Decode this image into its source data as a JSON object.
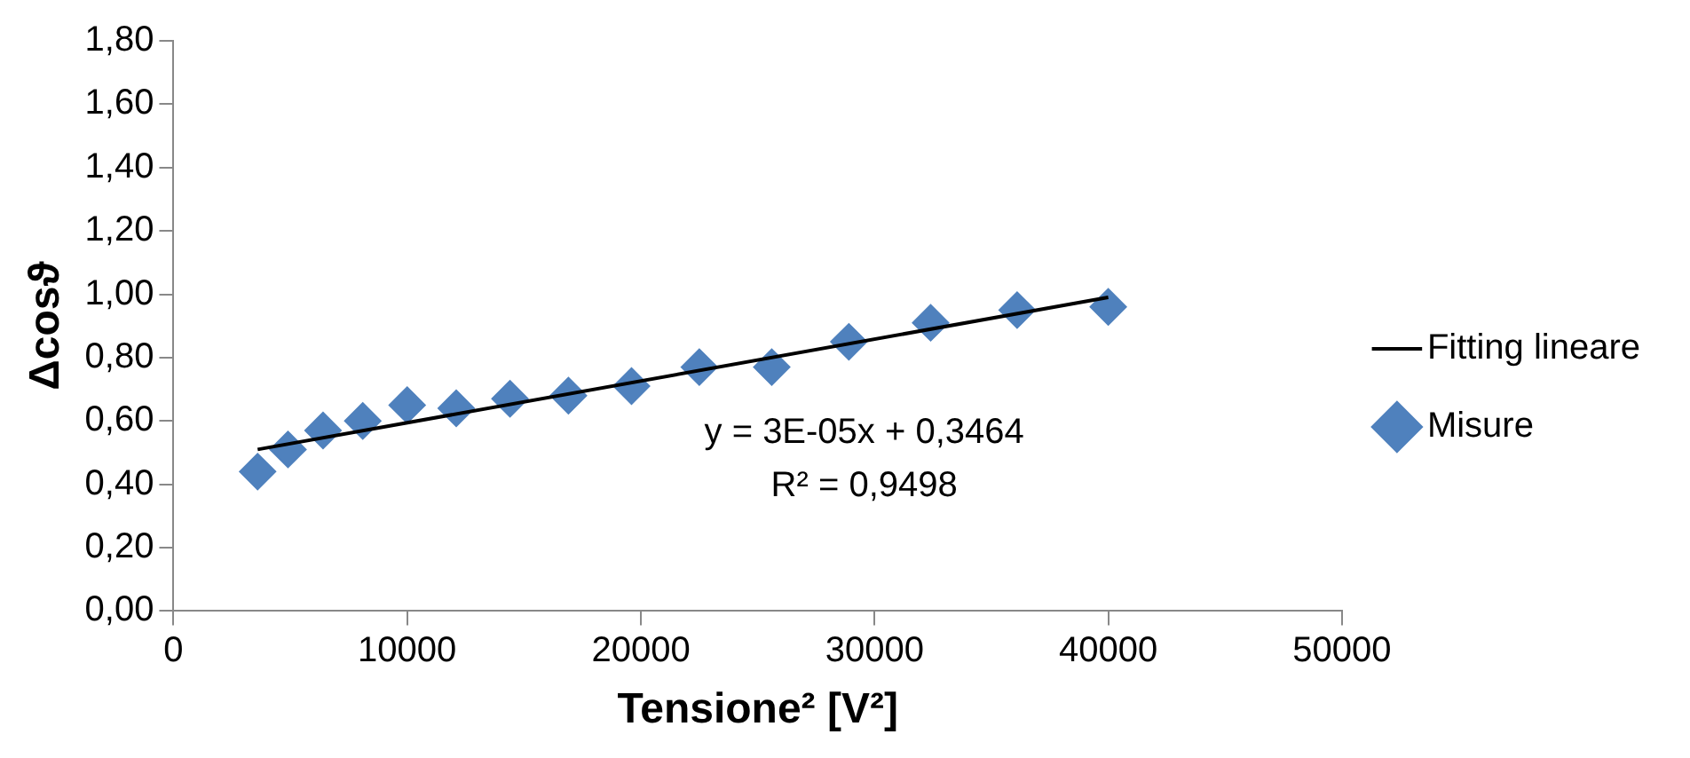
{
  "chart_data": {
    "type": "scatter",
    "xlabel": "Tensione² [V²]",
    "ylabel": "Δcosϑ",
    "x": [
      3600,
      4900,
      6400,
      8100,
      10000,
      12100,
      14400,
      16900,
      19600,
      22500,
      25600,
      28900,
      32400,
      36100,
      40000
    ],
    "series": [
      {
        "name": "Misure",
        "type": "scatter",
        "color": "#4f81bd",
        "marker": "diamond",
        "values": [
          0.44,
          0.51,
          0.57,
          0.6,
          0.65,
          0.64,
          0.67,
          0.68,
          0.71,
          0.77,
          0.77,
          0.85,
          0.91,
          0.95,
          0.96
        ]
      },
      {
        "name": "Fitting lineare",
        "type": "line",
        "color": "#000000",
        "marker": "none",
        "x": [
          3600,
          40000
        ],
        "values": [
          0.51,
          0.99
        ]
      }
    ],
    "xlim": [
      0,
      50000
    ],
    "xticks": [
      0,
      10000,
      20000,
      30000,
      40000,
      50000
    ],
    "ylim": [
      0,
      1.8
    ],
    "yticks": [
      {
        "value": 0,
        "label": "0,00"
      },
      {
        "value": 0.2,
        "label": "0,20"
      },
      {
        "value": 0.4,
        "label": "0,40"
      },
      {
        "value": 0.6,
        "label": "0,60"
      },
      {
        "value": 0.8,
        "label": "0,80"
      },
      {
        "value": 1,
        "label": "1,00"
      },
      {
        "value": 1.2,
        "label": "1,20"
      },
      {
        "value": 1.4,
        "label": "1,40"
      },
      {
        "value": 1.6,
        "label": "1,60"
      },
      {
        "value": 1.8,
        "label": "1,80"
      }
    ],
    "annotations": [
      "y = 3E-05x + 0,3464",
      "R² = 0,9498"
    ],
    "grid": false,
    "legend": "right"
  }
}
